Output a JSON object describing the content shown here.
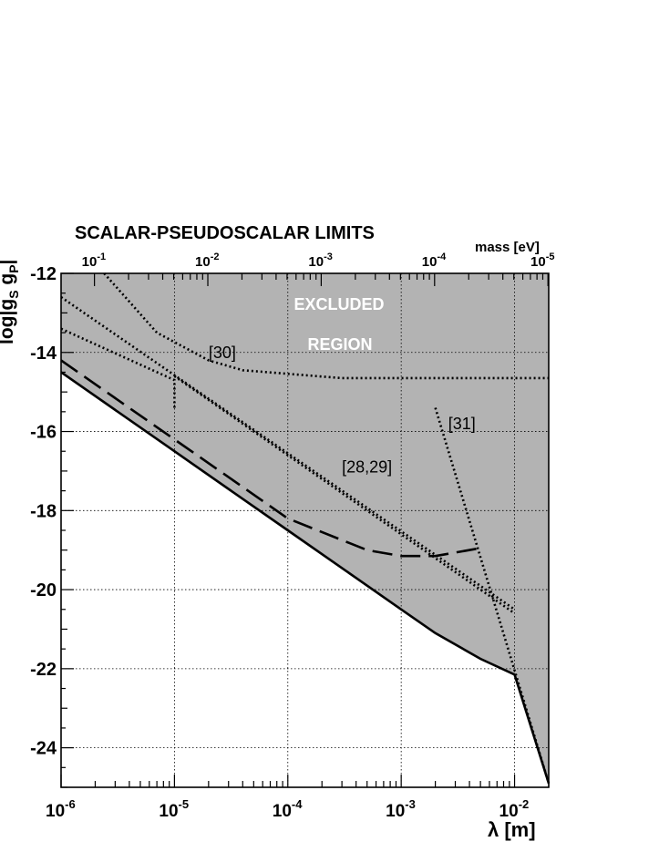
{
  "chart_data": {
    "type": "line",
    "title": "SCALAR-PSEUDOSCALAR LIMITS",
    "xlabel": "λ  [m]",
    "ylabel": "log|g_S g_P|",
    "top_axis_label": "mass [eV]",
    "xscale": "log",
    "xlim": [
      1e-06,
      0.02
    ],
    "ylim": [
      -25,
      -12
    ],
    "grid": true,
    "x_ticks": [
      {
        "value": 1e-06,
        "base": "10",
        "exp": "-6"
      },
      {
        "value": 1e-05,
        "base": "10",
        "exp": "-5"
      },
      {
        "value": 0.0001,
        "base": "10",
        "exp": "-4"
      },
      {
        "value": 0.001,
        "base": "10",
        "exp": "-3"
      },
      {
        "value": 0.01,
        "base": "10",
        "exp": "-2"
      }
    ],
    "y_ticks": [
      -12,
      -14,
      -16,
      -18,
      -20,
      -22,
      -24
    ],
    "y_tick_labels": [
      "-12",
      "-14",
      "-16",
      "-18",
      "-20",
      "-22",
      "-24"
    ],
    "top_ticks": [
      {
        "lambda": 1.97e-06,
        "base": "10",
        "exp": "-1"
      },
      {
        "lambda": 1.97e-05,
        "base": "10",
        "exp": "-2"
      },
      {
        "lambda": 0.000197,
        "base": "10",
        "exp": "-3"
      },
      {
        "lambda": 0.00197,
        "base": "10",
        "exp": "-4"
      },
      {
        "lambda": 0.0197,
        "base": "10",
        "exp": "-5"
      }
    ],
    "excluded_region_label": [
      "EXCLUDED",
      "REGION"
    ],
    "annotations": [
      {
        "text": "[30]",
        "x": 2e-05,
        "y": -14.0
      },
      {
        "text": "[28,29]",
        "x": 0.0003,
        "y": -16.9
      },
      {
        "text": "[31]",
        "x": 0.0026,
        "y": -15.8
      }
    ],
    "series": [
      {
        "style": "solid",
        "x": [
          1e-06,
          1e-05,
          0.0001,
          0.001,
          0.002,
          0.005,
          0.01,
          0.02
        ],
        "y": [
          -14.5,
          -16.5,
          -18.5,
          -20.5,
          -21.1,
          -21.75,
          -22.15,
          -24.9
        ]
      },
      {
        "style": "dashed",
        "x": [
          1e-06,
          1e-05,
          0.0001,
          0.0005,
          0.001,
          0.002,
          0.005
        ],
        "y": [
          -14.2,
          -16.2,
          -18.2,
          -19.0,
          -19.15,
          -19.15,
          -18.95
        ]
      },
      {
        "style": "dotted",
        "x": [
          2.4e-06,
          7e-06,
          2e-05,
          4e-05,
          0.0003,
          0.02
        ],
        "y": [
          -12.0,
          -13.5,
          -14.2,
          -14.45,
          -14.65,
          -14.65
        ]
      },
      {
        "style": "dotted",
        "x": [
          1e-06,
          1e-05,
          0.01
        ],
        "y": [
          -13.4,
          -15.4,
          -20.6
        ],
        "segments": [
          {
            "x": [
              1e-06,
              1e-05,
              1e-05
            ],
            "y": [
              -13.4,
              -14.7,
              -15.4
            ]
          },
          {
            "x": [
              1e-05,
              0.01
            ],
            "y": [
              -14.6,
              -20.6
            ]
          }
        ]
      },
      {
        "style": "dotted",
        "x": [
          1e-06,
          0.01
        ],
        "y": [
          -12.6,
          -20.5
        ]
      },
      {
        "style": "dotted",
        "x": [
          0.002,
          0.02
        ],
        "y": [
          -15.4,
          -24.9
        ]
      }
    ]
  }
}
